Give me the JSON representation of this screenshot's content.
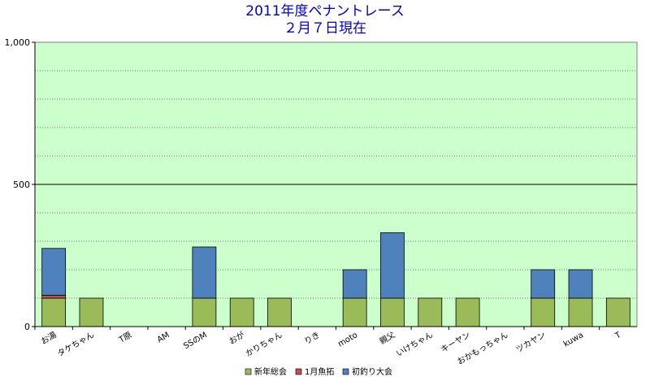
{
  "chart_data": {
    "type": "bar",
    "stacked": true,
    "title": "2011年度ペナントレース",
    "subtitle": "２月７日現在",
    "xlabel": "",
    "ylabel": "",
    "ylim": [
      0,
      1000
    ],
    "yticks": [
      "0",
      "500",
      "1,000"
    ],
    "grid": true,
    "legend_position": "bottom",
    "categories": [
      "お湯",
      "タケちゃん",
      "T原",
      "AM",
      "SSのM",
      "おが",
      "かりちゃん",
      "りき",
      "moto",
      "親父",
      "いけちゃん",
      "キーヤン",
      "おかもっちゃん",
      "ツカヤン",
      "kuwa",
      "T"
    ],
    "series": [
      {
        "name": "新年総会",
        "color": "#9bbb59",
        "values": [
          100,
          100,
          0,
          0,
          100,
          100,
          100,
          0,
          100,
          100,
          100,
          100,
          0,
          100,
          100,
          100
        ]
      },
      {
        "name": "1月魚拓",
        "color": "#c0504d",
        "values": [
          10,
          0,
          0,
          0,
          0,
          0,
          0,
          0,
          0,
          0,
          0,
          0,
          0,
          0,
          0,
          0
        ]
      },
      {
        "name": "初釣り大会",
        "color": "#4f81bd",
        "values": [
          165,
          0,
          0,
          0,
          180,
          0,
          0,
          0,
          100,
          230,
          0,
          0,
          0,
          100,
          100,
          0
        ]
      }
    ],
    "plot_background": "#ccffcc"
  }
}
